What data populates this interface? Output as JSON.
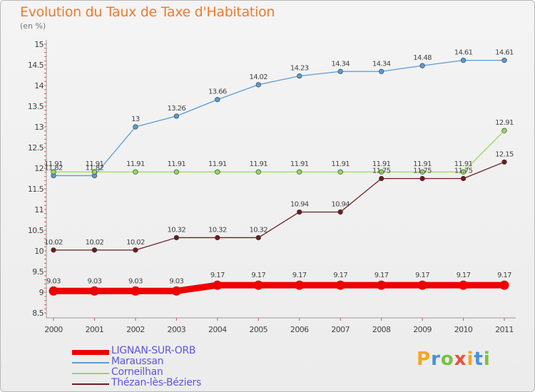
{
  "title": "Evolution du Taux de Taxe d'Habitation",
  "unit": "(en %)",
  "logo": {
    "letters": [
      "P",
      "r",
      "o",
      "x",
      "i",
      "t",
      "i"
    ],
    "colors": [
      "#f5a623",
      "#4a90d9",
      "#7ac143",
      "#e94e3c",
      "#f5a623",
      "#4a90d9",
      "#7ac143"
    ]
  },
  "chart_data": {
    "type": "line",
    "title": "Evolution du Taux de Taxe d'Habitation",
    "ylabel": "(en %)",
    "xlabel": "",
    "ylim": [
      8.5,
      15
    ],
    "y_ticks": [
      "8.5",
      "9",
      "9.5",
      "10",
      "10.5",
      "11",
      "11.5",
      "12",
      "12.5",
      "13",
      "13.5",
      "14",
      "14.5",
      "15"
    ],
    "grid": false,
    "legend_position": "bottom-left",
    "x": [
      "2000",
      "2001",
      "2002",
      "2003",
      "2004",
      "2005",
      "2006",
      "2007",
      "2008",
      "2009",
      "2010",
      "2011"
    ],
    "series": [
      {
        "name": "LIGNAN-SUR-ORB",
        "color": "#ee0000",
        "values": [
          9.03,
          9.03,
          9.03,
          9.03,
          9.17,
          9.17,
          9.17,
          9.17,
          9.17,
          9.17,
          9.17,
          9.17
        ],
        "labels": [
          "9.03",
          "9.03",
          "9.03",
          "9.03",
          "9.17",
          "9.17",
          "9.17",
          "9.17",
          "9.17",
          "9.17",
          "9.17",
          "9.17"
        ]
      },
      {
        "name": "Maraussan",
        "color": "#5a9bd3",
        "values": [
          11.82,
          11.82,
          13,
          13.26,
          13.66,
          14.02,
          14.23,
          14.34,
          14.34,
          14.48,
          14.61,
          14.61
        ],
        "labels": [
          "11.82",
          "11.82",
          "13",
          "13.26",
          "13.66",
          "14.02",
          "14.23",
          "14.34",
          "14.34",
          "14.48",
          "14.61",
          "14.61"
        ]
      },
      {
        "name": "Corneilhan",
        "color": "#8fdb5a",
        "values": [
          11.91,
          11.91,
          11.91,
          11.91,
          11.91,
          11.91,
          11.91,
          11.91,
          11.91,
          11.91,
          11.91,
          12.91
        ],
        "labels": [
          "11.91",
          "11.91",
          "11.91",
          "11.91",
          "11.91",
          "11.91",
          "11.91",
          "11.91",
          "11.91",
          "11.91",
          "11.91",
          "12.91"
        ]
      },
      {
        "name": "Thézan-lès-Béziers",
        "color": "#6e1d1d",
        "values": [
          10.02,
          10.02,
          10.02,
          10.32,
          10.32,
          10.32,
          10.94,
          10.94,
          11.75,
          11.75,
          11.75,
          12.15
        ],
        "labels": [
          "10.02",
          "10.02",
          "10.02",
          "10.32",
          "10.32",
          "10.32",
          "10.94",
          "10.94",
          "11.75",
          "11.75",
          "11.75",
          "12.15"
        ]
      }
    ]
  }
}
